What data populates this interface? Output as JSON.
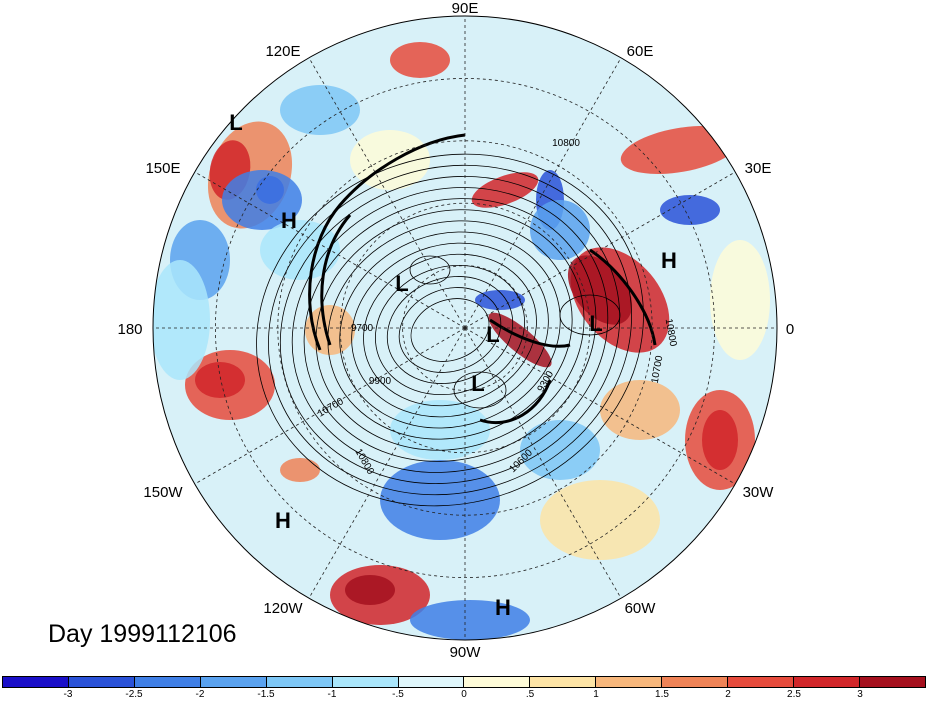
{
  "title": "Day 1999112106",
  "longitude_labels": {
    "lon_90e": "90E",
    "lon_60e": "60E",
    "lon_30e": "30E",
    "lon_0": "0",
    "lon_30w": "30W",
    "lon_60w": "60W",
    "lon_90w": "90W",
    "lon_120w": "120W",
    "lon_150w": "150W",
    "lon_180": "180",
    "lon_150e": "150E",
    "lon_120e": "120E"
  },
  "pressure_centers": [
    "L",
    "H",
    "L",
    "L",
    "L",
    "L",
    "H",
    "H",
    "H"
  ],
  "contour_labels": [
    "10800",
    "9900",
    "9700",
    "10700",
    "10800",
    "9300",
    "10600",
    "10800",
    "10700"
  ],
  "colorbar": {
    "colors": [
      "#1a0fc9",
      "#2a52d8",
      "#3f7fe6",
      "#5aa2ef",
      "#7ec7f6",
      "#aae6fb",
      "#dff6fb",
      "#fefbd8",
      "#fde4a6",
      "#f7b77c",
      "#ef8357",
      "#e64b3c",
      "#d1262a",
      "#a5101e"
    ],
    "tick_labels": [
      "-3",
      "-2.5",
      "-2",
      "-1.5",
      "-1",
      "-.5",
      "0",
      ".5",
      "1",
      "1.5",
      "2",
      "2.5",
      "3"
    ]
  }
}
